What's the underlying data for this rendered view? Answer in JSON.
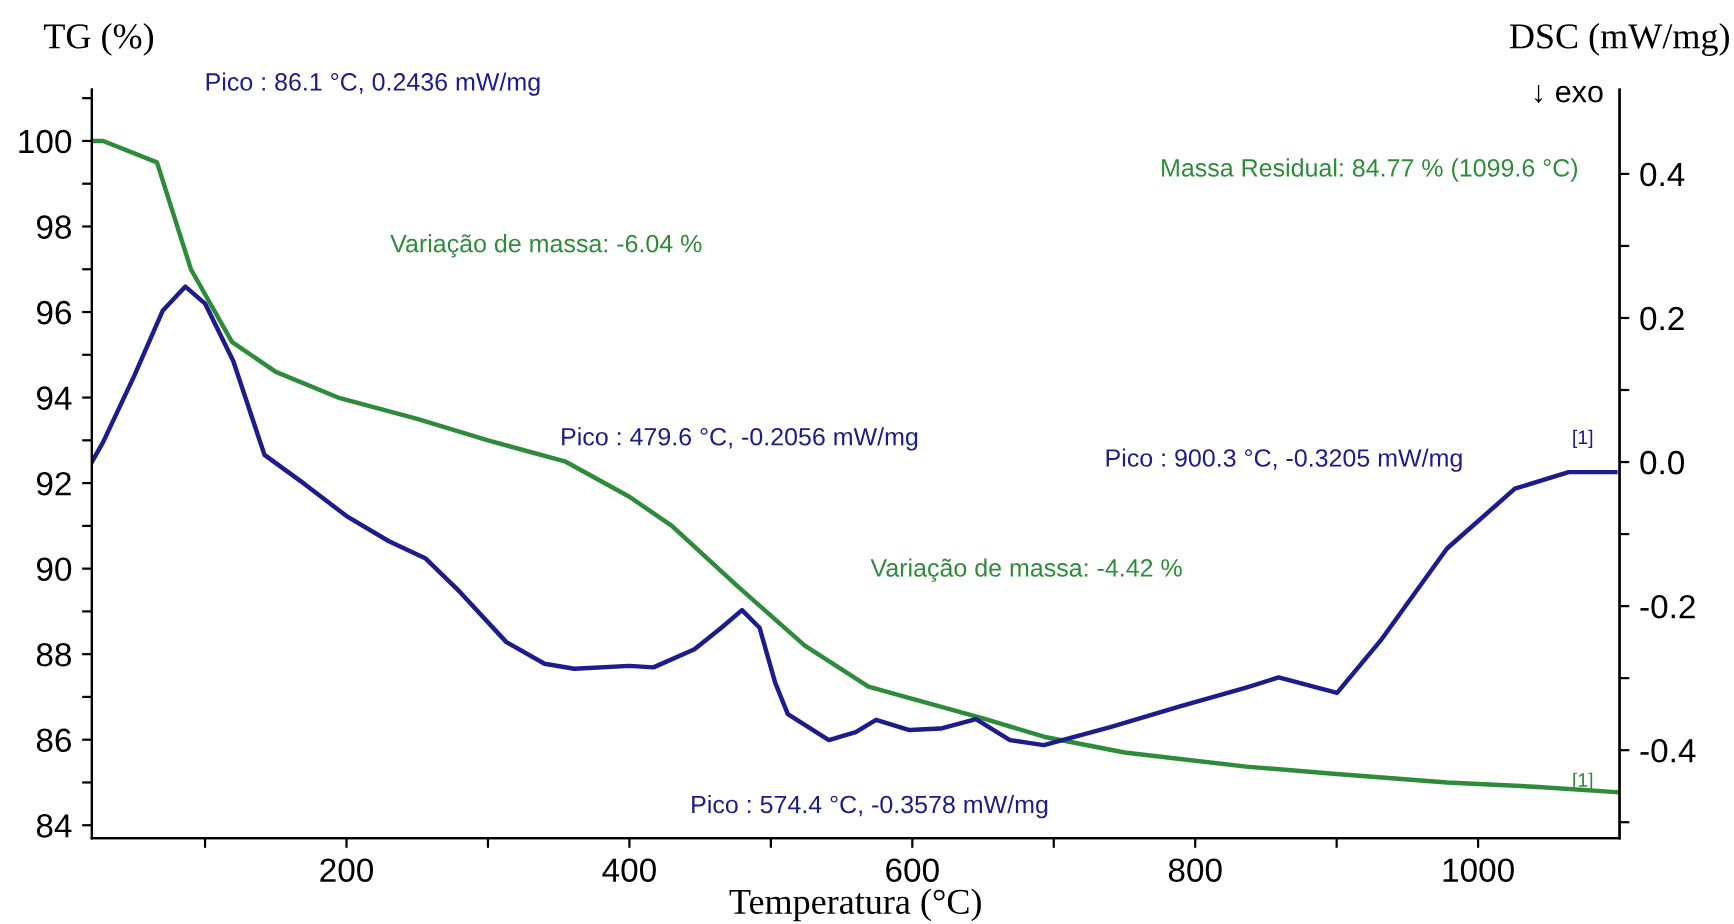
{
  "chart_data": {
    "type": "line",
    "xlabel": "Temperatura (°C)",
    "ylabel": "TG (%)",
    "y2label": "DSC (mW/mg)",
    "xlim": [
      20,
      1100
    ],
    "ylim": [
      83.7,
      101.2
    ],
    "y2lim": [
      -0.522,
      0.517
    ],
    "xticks": [
      {
        "value": 100,
        "label": null
      },
      200,
      {
        "value": 300,
        "label": null
      },
      400,
      {
        "value": 500,
        "label": null
      },
      600,
      {
        "value": 700,
        "label": null
      },
      800,
      {
        "value": 900,
        "label": null
      },
      1000
    ],
    "yticks": [
      84,
      {
        "value": 85,
        "label": null
      },
      86,
      {
        "value": 87,
        "label": null
      },
      88,
      {
        "value": 89,
        "label": null
      },
      90,
      {
        "value": 91,
        "label": null
      },
      92,
      {
        "value": 93,
        "label": null
      },
      94,
      {
        "value": 95,
        "label": null
      },
      96,
      {
        "value": 97,
        "label": null
      },
      98,
      {
        "value": 99,
        "label": null
      },
      100,
      {
        "value": 101,
        "label": null
      }
    ],
    "y2ticks": [
      {
        "value": -0.5,
        "label": null
      },
      -0.4,
      {
        "value": -0.3,
        "label": null
      },
      -0.2,
      {
        "value": -0.1,
        "label": null
      },
      {
        "value": 0,
        "label": "0.0"
      },
      {
        "value": 0.1,
        "label": null
      },
      0.2,
      {
        "value": 0.3,
        "label": null
      },
      0.4
    ],
    "grid": false,
    "legend": false,
    "marker": "none",
    "line_style": "solid",
    "series": [
      {
        "color": "#2e8b3a",
        "x": [
          20,
          28,
          66,
          90,
          119,
          150,
          194,
          250,
          300,
          355,
          400,
          430,
          476,
          500,
          524,
          569,
          595,
          650,
          693,
          750,
          836,
          900,
          978,
          1040,
          1099.6
        ],
        "values": [
          100.0,
          100.0,
          99.5,
          97.0,
          95.3,
          94.6,
          94.0,
          93.5,
          93.0,
          92.5,
          91.68,
          91.0,
          89.6,
          88.9,
          88.2,
          87.24,
          87.0,
          86.5,
          86.07,
          85.7,
          85.37,
          85.2,
          85.0,
          84.9,
          84.77
        ]
      },
      {
        "color": "#1c1c8c",
        "axis": "y2",
        "x": [
          20,
          28,
          50,
          70,
          86.1,
          100,
          120,
          142,
          170,
          200,
          230,
          256,
          280,
          313,
          340,
          361,
          400,
          417,
          446,
          465,
          479.6,
          492,
          503,
          512,
          541,
          560,
          574.4,
          598,
          620,
          645,
          669,
          693,
          740,
          788,
          836,
          859,
          900.3,
          931,
          978,
          1026,
          1064,
          1097
        ],
        "values": [
          0.0,
          0.028,
          0.12,
          0.21,
          0.2436,
          0.22,
          0.14,
          0.01,
          -0.03,
          -0.075,
          -0.11,
          -0.134,
          -0.18,
          -0.25,
          -0.28,
          -0.287,
          -0.283,
          -0.285,
          -0.26,
          -0.23,
          -0.2056,
          -0.23,
          -0.306,
          -0.35,
          -0.386,
          -0.375,
          -0.3578,
          -0.372,
          -0.37,
          -0.357,
          -0.386,
          -0.393,
          -0.368,
          -0.34,
          -0.313,
          -0.299,
          -0.3205,
          -0.248,
          -0.12,
          -0.037,
          -0.014,
          -0.014
        ]
      }
    ],
    "annotations": [
      "Pico : 86.1 °C, 0.2436 mW/mg",
      "Variação de massa: -6.04 %",
      "Pico : 479.6 °C, -0.2056 mW/mg",
      "Massa Residual: 84.77 % (1099.6 °C)",
      "Pico : 900.3 °C, -0.3205 mW/mg",
      "Variação de massa: -4.42 %",
      "Pico : 574.4 °C, -0.3578 mW/mg",
      "↓ exo",
      "[1]",
      "[1]"
    ]
  }
}
